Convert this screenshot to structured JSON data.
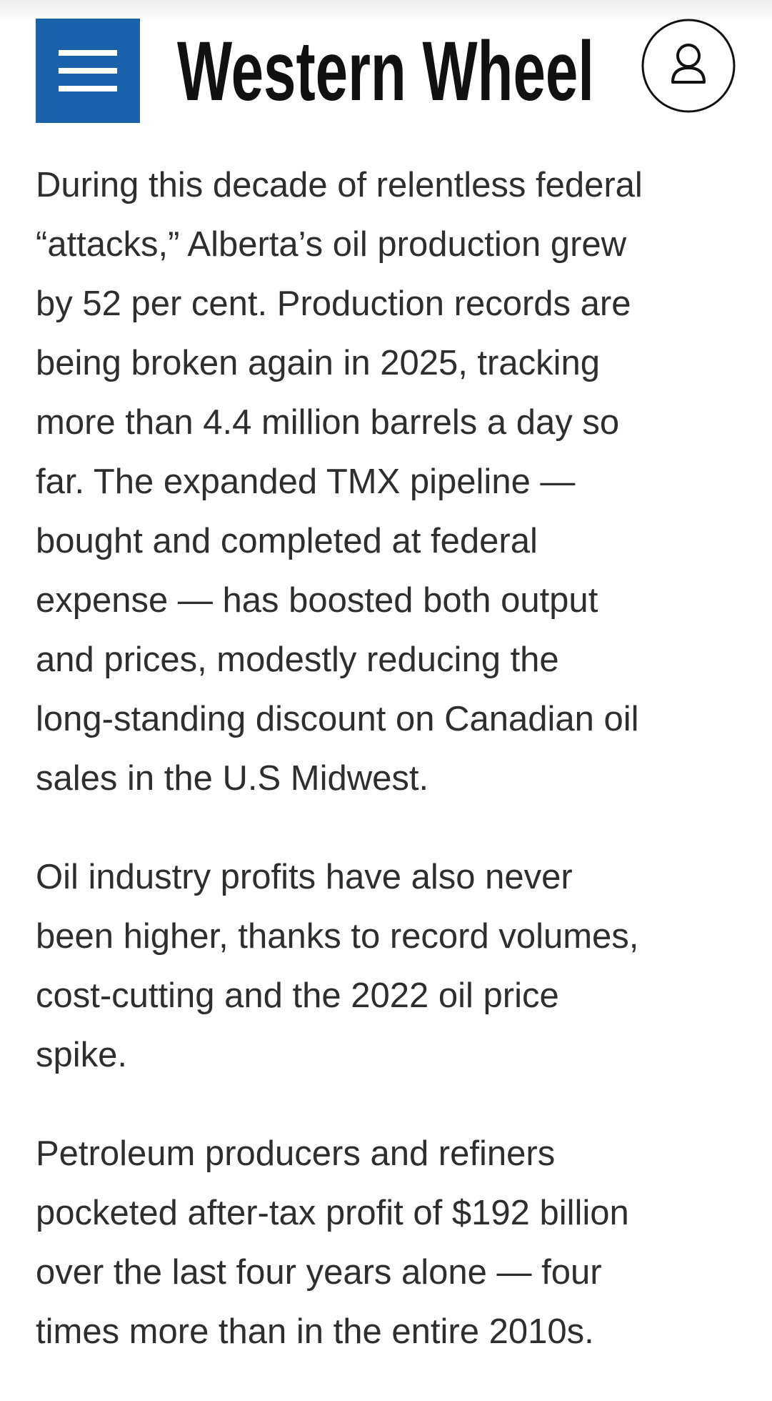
{
  "header": {
    "logo": "Western Wheel"
  },
  "article": {
    "paragraphs": [
      {
        "lines": [
          "During this decade of relentless federal",
          "“attacks,” Alberta’s oil production grew",
          "by 52 per cent. Production records are",
          "being broken again in 2025, tracking",
          "more than 4.4 million barrels a day so",
          "far. The expanded TMX pipeline —",
          "bought and completed at federal",
          "expense — has boosted both output",
          "and prices, modestly reducing the",
          "long-standing discount on Canadian oil",
          "sales in the U.S Midwest."
        ]
      },
      {
        "lines": [
          "Oil industry profits have also never",
          "been higher, thanks to record volumes,",
          "cost-cutting and the 2022 oil price",
          "spike."
        ]
      },
      {
        "lines": [
          "Petroleum producers and refiners",
          "pocketed after-tax profit of $192 billion",
          "over the last four years alone — four",
          "times more than in the entire 2010s."
        ]
      }
    ]
  }
}
